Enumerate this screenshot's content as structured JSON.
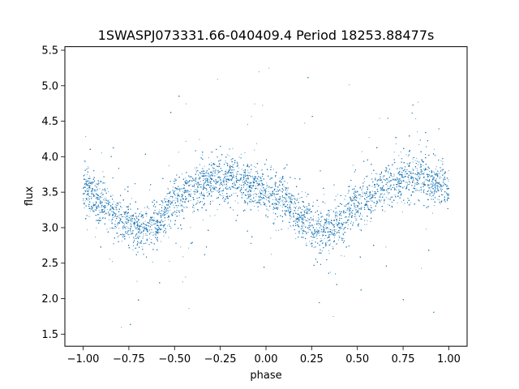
{
  "chart_data": {
    "type": "scatter",
    "title": "1SWASPJ073331.66-040409.4 Period 18253.88477s",
    "xlabel": "phase",
    "ylabel": "flux",
    "xlim": [
      -1.1,
      1.1
    ],
    "ylim": [
      1.33,
      5.55
    ],
    "xticks": [
      -1.0,
      -0.75,
      -0.5,
      -0.25,
      0.0,
      0.25,
      0.5,
      0.75,
      1.0
    ],
    "xtick_labels": [
      "−1.00",
      "−0.75",
      "−0.50",
      "−0.25",
      "0.00",
      "0.25",
      "0.50",
      "0.75",
      "1.00"
    ],
    "yticks": [
      1.5,
      2.0,
      2.5,
      3.0,
      3.5,
      4.0,
      4.5,
      5.0,
      5.5
    ],
    "ytick_labels": [
      "1.5",
      "2.0",
      "2.5",
      "3.0",
      "3.5",
      "4.0",
      "4.5",
      "5.0",
      "5.5"
    ],
    "grid": false,
    "marker_color": "#1f77b4",
    "series": [
      {
        "phase_range": [
          -1.0,
          1.0
        ],
        "point_count": 14000,
        "curve_phase": [
          -1.0,
          -0.9,
          -0.8,
          -0.7,
          -0.6,
          -0.5,
          -0.4,
          -0.3,
          -0.2,
          -0.1,
          0.0,
          0.1,
          0.2,
          0.3,
          0.4,
          0.5,
          0.6,
          0.7,
          0.8,
          0.9,
          1.0
        ],
        "curve_flux": [
          3.55,
          3.35,
          3.1,
          2.97,
          3.05,
          3.35,
          3.55,
          3.65,
          3.68,
          3.62,
          3.5,
          3.4,
          3.1,
          2.95,
          3.05,
          3.35,
          3.5,
          3.62,
          3.68,
          3.65,
          3.6
        ]
      }
    ]
  }
}
